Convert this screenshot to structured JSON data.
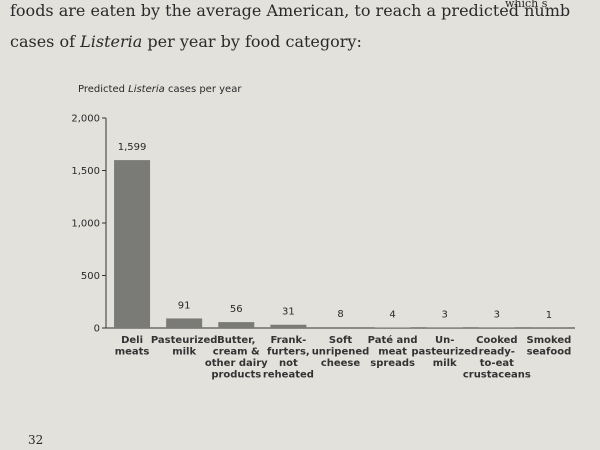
{
  "page": {
    "text_fragment": "which s",
    "line1": "foods are eaten by the average American, to reach a predicted numb",
    "line2": [
      "cases of ",
      "Listeria",
      " per year by food category:"
    ],
    "page_number": "32"
  },
  "chart_data": {
    "type": "bar",
    "title": [
      "Predicted ",
      "Listeria",
      " cases per year"
    ],
    "categories": [
      [
        "Deli",
        "meats"
      ],
      [
        "Pasteurized",
        "milk"
      ],
      [
        "Butter,",
        "cream &",
        "other dairy",
        "products"
      ],
      [
        "Frank-",
        "furters,",
        "not",
        "reheated"
      ],
      [
        "Soft",
        "unripened",
        "cheese"
      ],
      [
        "Paté and",
        "meat",
        "spreads"
      ],
      [
        "Un-",
        "pasteurized",
        "milk"
      ],
      [
        "Cooked",
        "ready-",
        "to-eat",
        "crustaceans"
      ],
      [
        "Smoked",
        "seafood"
      ]
    ],
    "values": [
      1599,
      91,
      56,
      31,
      8,
      4,
      3,
      3,
      1
    ],
    "value_labels": [
      "1,599",
      "91",
      "56",
      "31",
      "8",
      "4",
      "3",
      "3",
      "1"
    ],
    "color": "#7a7a76",
    "ylim": [
      0,
      2000
    ],
    "yticks": [
      0,
      500,
      {
        "value": 1000,
        "label": "1,000"
      },
      {
        "value": 1500,
        "label": "1,500"
      },
      {
        "value": 2000,
        "label": "2,000"
      }
    ]
  }
}
